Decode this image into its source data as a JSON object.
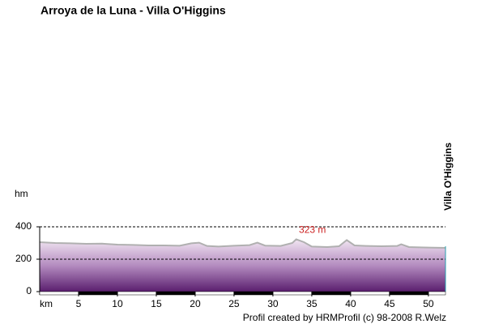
{
  "chart_data": {
    "type": "area",
    "title": "Arroya de la Luna - Villa O'Higgins",
    "y_label": "hm",
    "x_label": "km",
    "end_label": "Villa O'Higgins",
    "annotation": {
      "label": "323 m",
      "x": 33,
      "y": 323,
      "color": "#cc2222"
    },
    "footer": "Profil created by HRMProfil (c) 98-2008 R.Welz",
    "x": [
      0,
      2,
      4,
      6,
      8,
      10,
      12,
      14,
      16,
      18,
      19.5,
      20.5,
      21.5,
      23,
      25,
      27,
      28,
      29,
      31,
      32.5,
      33,
      34,
      35,
      37,
      38.5,
      39.5,
      40.5,
      42,
      44,
      46,
      46.5,
      47.5,
      50,
      52.2
    ],
    "values": [
      305,
      300,
      298,
      295,
      296,
      290,
      288,
      285,
      285,
      283,
      298,
      302,
      282,
      278,
      283,
      287,
      302,
      284,
      282,
      300,
      323,
      305,
      278,
      275,
      280,
      318,
      285,
      282,
      280,
      282,
      292,
      275,
      272,
      270
    ],
    "color": "#b0b0b0",
    "xlim": [
      0,
      52.2
    ],
    "xticks": [
      5,
      10,
      15,
      20,
      25,
      30,
      35,
      40,
      45,
      50
    ],
    "ylim": [
      0,
      400
    ],
    "yticks": [
      0,
      200,
      400
    ],
    "grid": true
  }
}
